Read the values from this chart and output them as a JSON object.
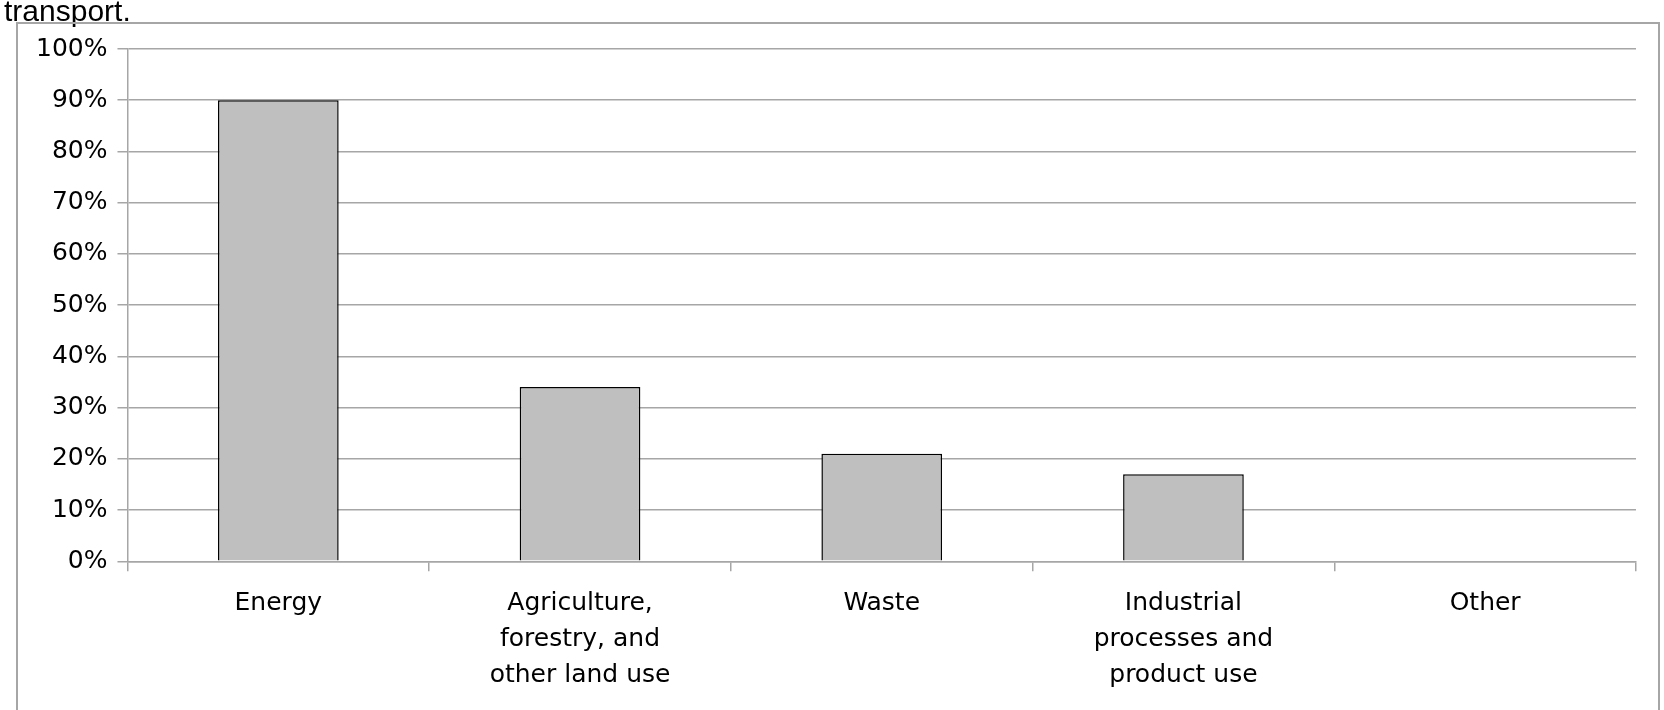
{
  "chart_data": {
    "type": "bar",
    "annotations": [
      "transport."
    ],
    "categories": [
      "Energy",
      "Agriculture, forestry, and other land use",
      "Waste",
      "Industrial processes and product use",
      "Other"
    ],
    "values": [
      90,
      34,
      21,
      17,
      0
    ],
    "color": "#bfbfbf",
    "ylim": [
      0,
      100
    ],
    "yticks": [
      {
        "value": 0,
        "label": "0%"
      },
      {
        "value": 10,
        "label": "10%"
      },
      {
        "value": 20,
        "label": "20%"
      },
      {
        "value": 30,
        "label": "30%"
      },
      {
        "value": 40,
        "label": "40%"
      },
      {
        "value": 50,
        "label": "50%"
      },
      {
        "value": 60,
        "label": "60%"
      },
      {
        "value": 70,
        "label": "70%"
      },
      {
        "value": 80,
        "label": "80%"
      },
      {
        "value": 90,
        "label": "90%"
      },
      {
        "value": 100,
        "label": "100%"
      }
    ],
    "grid": "y",
    "legend": false
  }
}
